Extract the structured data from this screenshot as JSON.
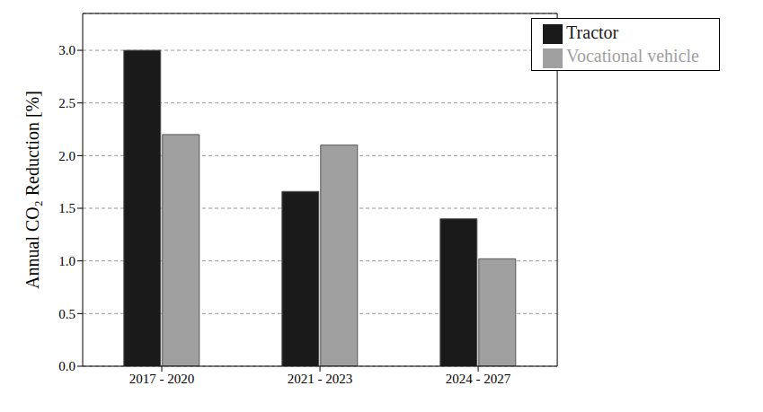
{
  "chart_data": {
    "type": "bar",
    "y_label": "Annual CO₂ Reduction [%]",
    "categories": [
      "2017 - 2020",
      "2021 - 2023",
      "2024 - 2027"
    ],
    "series": [
      {
        "name": "Tractor",
        "color": "#1a1a1a",
        "values": [
          3.0,
          1.66,
          1.4
        ]
      },
      {
        "name": "Vocational vehicle",
        "color": "#a0a0a0",
        "values": [
          2.2,
          2.1,
          1.02
        ]
      }
    ],
    "ylim": [
      0,
      3.35
    ],
    "yticks": [
      {
        "value": 0,
        "label": "0.0"
      },
      {
        "value": 0.5,
        "label": "0.5"
      },
      {
        "value": 1,
        "label": "1.0"
      },
      {
        "value": 1.5,
        "label": "1.5"
      },
      {
        "value": 2,
        "label": "2.0"
      },
      {
        "value": 2.5,
        "label": "2.5"
      },
      {
        "value": 3,
        "label": "3.0"
      }
    ],
    "grid": true,
    "legend": "upper right"
  }
}
